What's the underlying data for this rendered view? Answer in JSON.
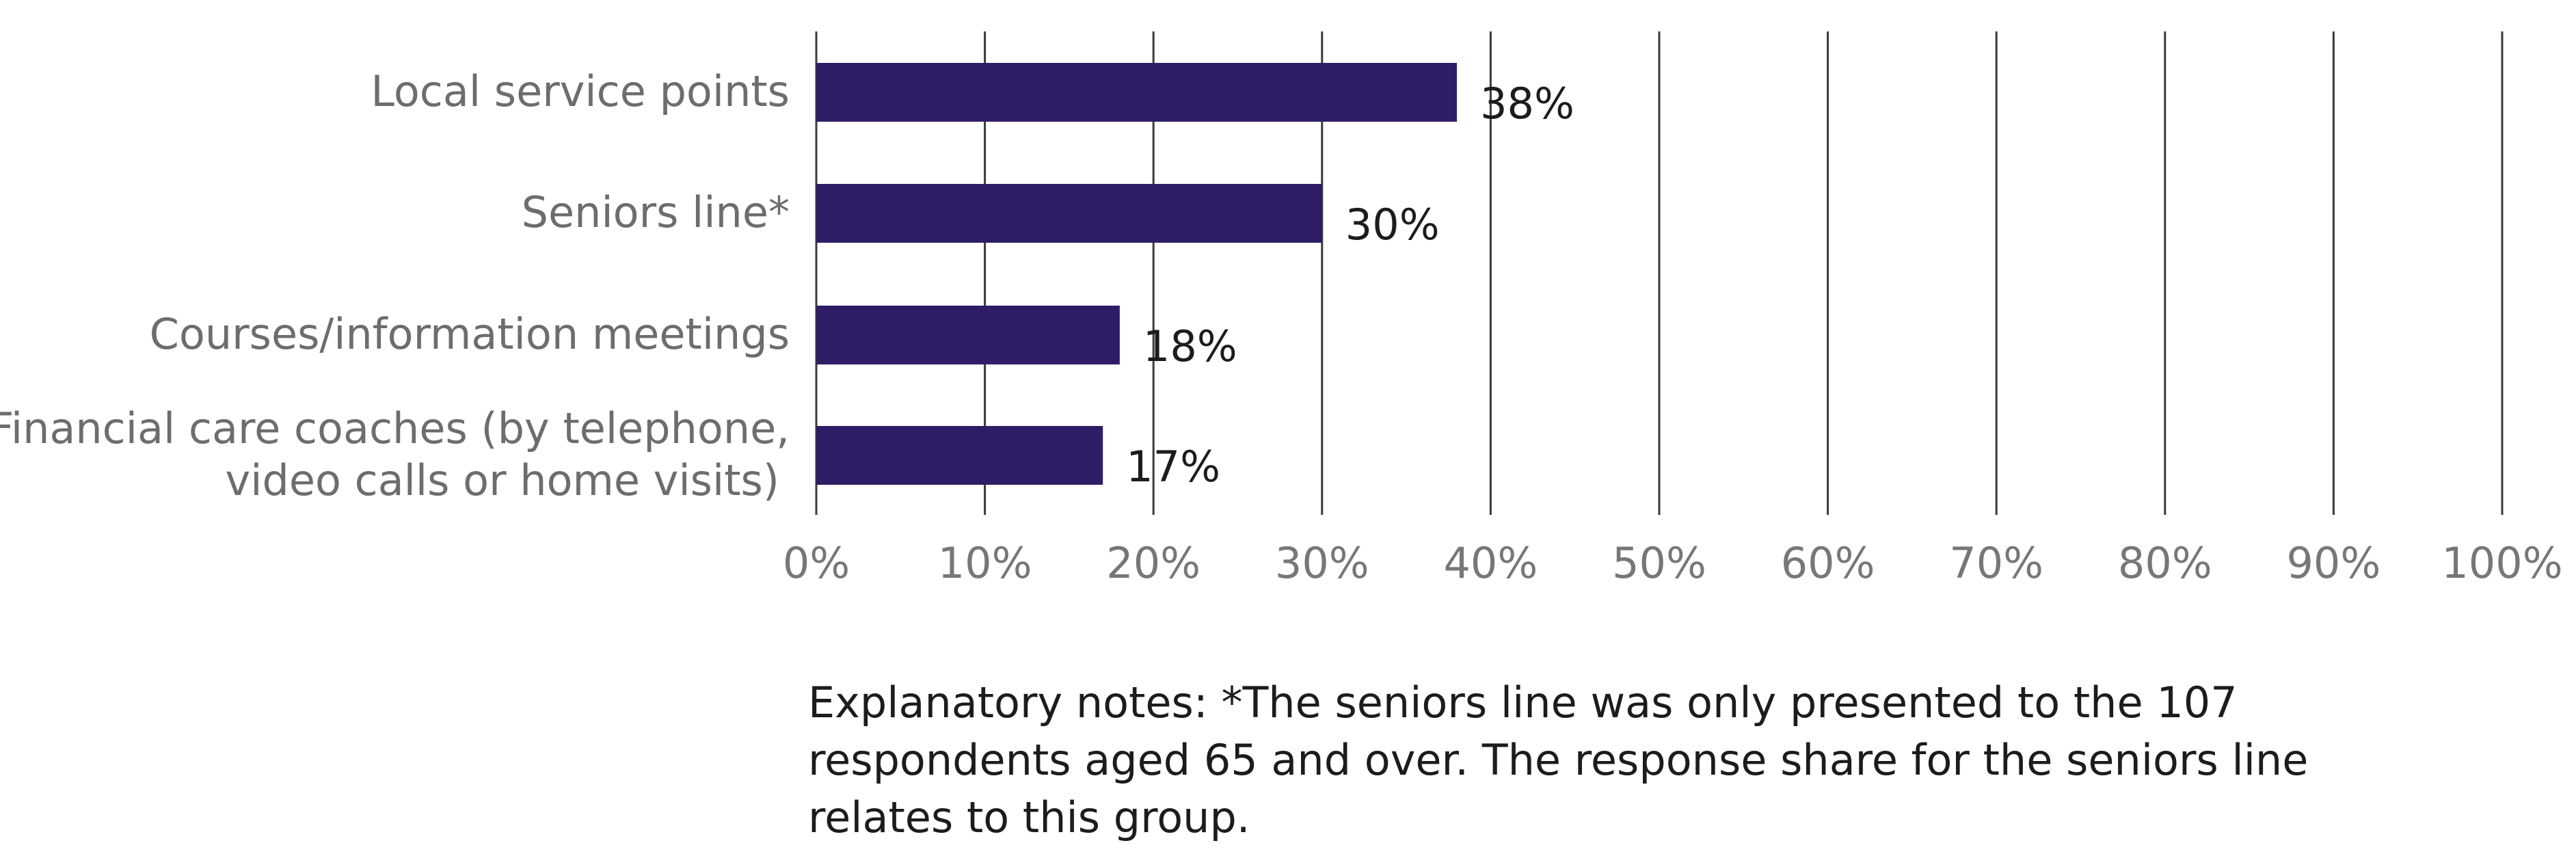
{
  "chart_data": {
    "type": "bar",
    "orientation": "horizontal",
    "categories": [
      [
        "Local service points"
      ],
      [
        "Seniors line*"
      ],
      [
        "Courses/information meetings"
      ],
      [
        "Financial care coaches (by telephone,",
        "video calls or home visits)"
      ]
    ],
    "values": [
      38,
      30,
      18,
      17
    ],
    "value_labels": [
      "38%",
      "30%",
      "18%",
      "17%"
    ],
    "xlim": [
      0,
      100
    ],
    "xticks": [
      0,
      10,
      20,
      30,
      40,
      50,
      60,
      70,
      80,
      90,
      100
    ],
    "xtick_labels": [
      "0%",
      "10%",
      "20%",
      "30%",
      "40%",
      "50%",
      "60%",
      "70%",
      "80%",
      "90%",
      "100%"
    ],
    "grid": true,
    "bar_color": "#2e1d66"
  },
  "notes": "Explanatory notes: *The seniors line was only presented to the 107 respondents aged 65 and over. The response share for the seniors line relates to this group."
}
